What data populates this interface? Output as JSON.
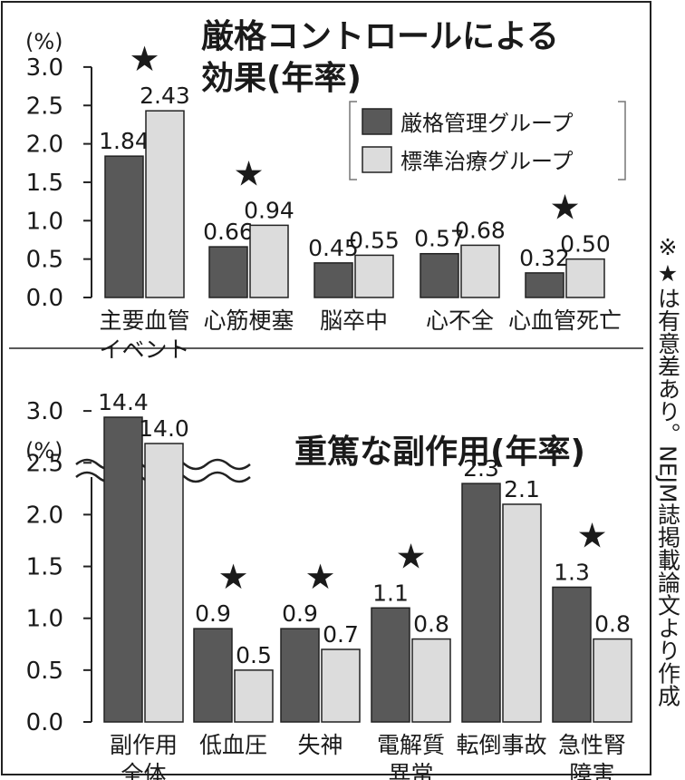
{
  "note": "※★は有意差あり。NEJM誌掲載論文より作成",
  "star_glyph": "★",
  "colors": {
    "intensive": "#595959",
    "standard": "#dcdcdc",
    "frame": "#222222"
  },
  "chart_data": [
    {
      "type": "bar",
      "title_lines": [
        "厳格コントロールによる",
        "効果(年率)"
      ],
      "unit": "(%)",
      "ylim": [
        0,
        3.0
      ],
      "yticks": [
        "0.0",
        "0.5",
        "1.0",
        "1.5",
        "2.0",
        "2.5",
        "3.0"
      ],
      "legend": [
        "厳格管理グループ",
        "標準治療グループ"
      ],
      "legend_position": "top-right",
      "categories": [
        {
          "lines": [
            "主要血管",
            "イベント"
          ]
        },
        {
          "lines": [
            "心筋梗塞"
          ]
        },
        {
          "lines": [
            "脳卒中"
          ]
        },
        {
          "lines": [
            "心不全"
          ]
        },
        {
          "lines": [
            "心血管死亡"
          ]
        }
      ],
      "series": [
        {
          "name": "厳格管理グループ",
          "values": [
            1.84,
            0.66,
            0.45,
            0.57,
            0.32
          ],
          "labels": [
            "1.84",
            "0.66",
            "0.45",
            "0.57",
            "0.32"
          ]
        },
        {
          "name": "標準治療グループ",
          "values": [
            2.43,
            0.94,
            0.55,
            0.68,
            0.5
          ],
          "labels": [
            "2.43",
            "0.94",
            "0.55",
            "0.68",
            "0.50"
          ]
        }
      ],
      "significant": [
        true,
        true,
        false,
        false,
        true
      ]
    },
    {
      "type": "bar",
      "title_lines": [
        "重篤な副作用(年率)"
      ],
      "unit": "(%)",
      "ylim": [
        0,
        3.0
      ],
      "axis_break": true,
      "yticks": [
        "0.0",
        "0.5",
        "1.0",
        "1.5",
        "2.0",
        "2.5",
        "3.0"
      ],
      "categories": [
        {
          "lines": [
            "副作用",
            "全体"
          ]
        },
        {
          "lines": [
            "低血圧"
          ]
        },
        {
          "lines": [
            "失神"
          ]
        },
        {
          "lines": [
            "電解質",
            "異常"
          ]
        },
        {
          "lines": [
            "転倒事故"
          ]
        },
        {
          "lines": [
            "急性腎",
            "障害"
          ]
        }
      ],
      "series": [
        {
          "name": "厳格管理グループ",
          "values": [
            14.4,
            0.9,
            0.9,
            1.1,
            2.3,
            1.3
          ],
          "labels": [
            "14.4",
            "0.9",
            "0.9",
            "1.1",
            "2.3",
            "1.3"
          ]
        },
        {
          "name": "標準治療グループ",
          "values": [
            14.0,
            0.5,
            0.7,
            0.8,
            2.1,
            0.8
          ],
          "labels": [
            "14.0",
            "0.5",
            "0.7",
            "0.8",
            "2.1",
            "0.8"
          ]
        }
      ],
      "significant": [
        false,
        true,
        true,
        true,
        false,
        true
      ]
    }
  ]
}
